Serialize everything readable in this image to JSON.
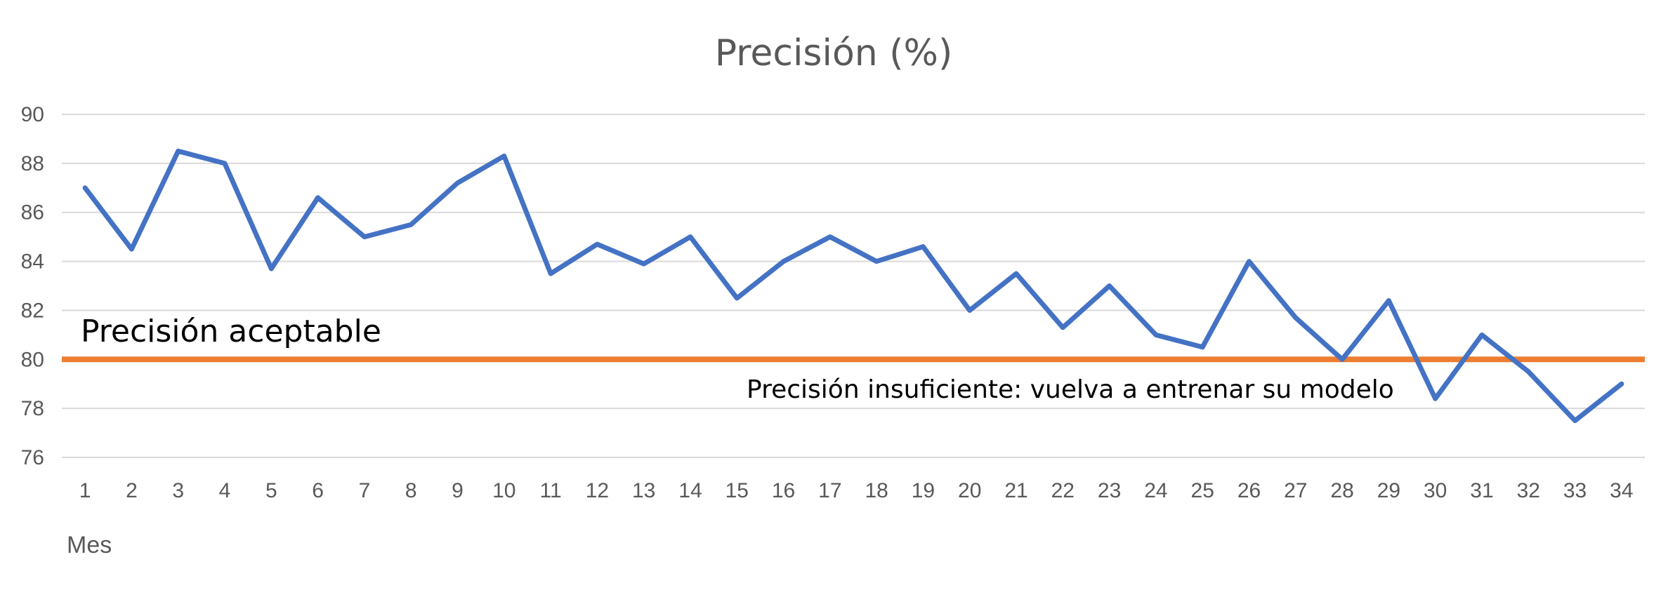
{
  "chart_data": {
    "type": "line",
    "title": "Precisión (%)",
    "xlabel": "Mes",
    "ylabel": "",
    "ylim": [
      76,
      90
    ],
    "yticks": [
      76,
      78,
      80,
      82,
      84,
      86,
      88,
      90
    ],
    "grid": true,
    "x": [
      1,
      2,
      3,
      4,
      5,
      6,
      7,
      8,
      9,
      10,
      11,
      12,
      13,
      14,
      15,
      16,
      17,
      18,
      19,
      20,
      21,
      22,
      23,
      24,
      25,
      26,
      27,
      28,
      29,
      30,
      31,
      32,
      33,
      34
    ],
    "series": [
      {
        "values": [
          87,
          84.5,
          88.5,
          88,
          83.7,
          86.6,
          85,
          85.5,
          87.2,
          88.3,
          83.5,
          84.7,
          83.9,
          85,
          82.5,
          84,
          85,
          84,
          84.6,
          82,
          83.5,
          81.3,
          83,
          81,
          80.5,
          84,
          81.7,
          80,
          82.4,
          78.4,
          81,
          79.5,
          77.5,
          79
        ],
        "color": "#4472c4"
      }
    ],
    "threshold": {
      "value": 80,
      "color": "#ed7d31"
    },
    "annotations": {
      "above": "Precisión aceptable",
      "below": "Precisión insuficiente: vuelva a entrenar su modelo"
    }
  }
}
